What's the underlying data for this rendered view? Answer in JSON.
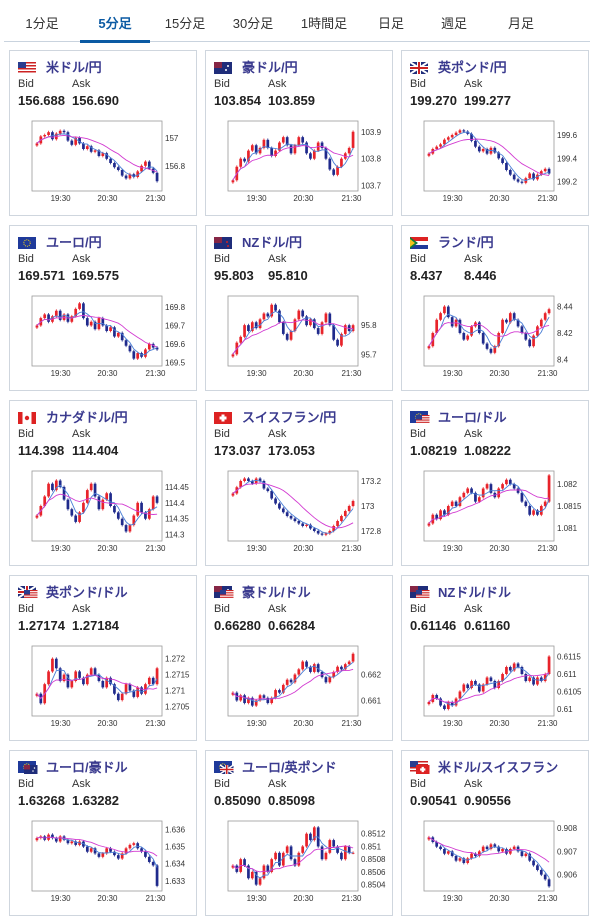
{
  "tabs": [
    {
      "label": "1分足",
      "active": false
    },
    {
      "label": "5分足",
      "active": true
    },
    {
      "label": "15分足",
      "active": false
    },
    {
      "label": "30分足",
      "active": false
    },
    {
      "label": "1時間足",
      "active": false
    },
    {
      "label": "日足",
      "active": false
    },
    {
      "label": "週足",
      "active": false
    },
    {
      "label": "月足",
      "active": false
    }
  ],
  "labels": {
    "bid": "Bid",
    "ask": "Ask"
  },
  "colors": {
    "up": "#e8232a",
    "down": "#1f2a8c",
    "ma_short": "#4a7fd6",
    "ma_long": "#d23bd1",
    "frame": "#999999"
  },
  "pairs": [
    {
      "name": "米ドル/円",
      "flag": "us",
      "bid": "156.688",
      "ask": "156.690"
    },
    {
      "name": "豪ドル/円",
      "flag": "au",
      "bid": "103.854",
      "ask": "103.859"
    },
    {
      "name": "英ポンド/円",
      "flag": "gb",
      "bid": "199.270",
      "ask": "199.277"
    },
    {
      "name": "ユーロ/円",
      "flag": "eu",
      "bid": "169.571",
      "ask": "169.575"
    },
    {
      "name": "NZドル/円",
      "flag": "nz",
      "bid": "95.803",
      "ask": "95.810"
    },
    {
      "name": "ランド/円",
      "flag": "za",
      "bid": "8.437",
      "ask": "8.446"
    },
    {
      "name": "カナダドル/円",
      "flag": "ca",
      "bid": "114.398",
      "ask": "114.404"
    },
    {
      "name": "スイスフラン/円",
      "flag": "ch",
      "bid": "173.037",
      "ask": "173.053"
    },
    {
      "name": "ユーロ/ドル",
      "flag": "euus",
      "bid": "1.08219",
      "ask": "1.08222"
    },
    {
      "name": "英ポンド/ドル",
      "flag": "gbus",
      "bid": "1.27174",
      "ask": "1.27184"
    },
    {
      "name": "豪ドル/ドル",
      "flag": "auus",
      "bid": "0.66280",
      "ask": "0.66284"
    },
    {
      "name": "NZドル/ドル",
      "flag": "nzus",
      "bid": "0.61146",
      "ask": "0.61160"
    },
    {
      "name": "ユーロ/豪ドル",
      "flag": "euau",
      "bid": "1.63268",
      "ask": "1.63282"
    },
    {
      "name": "ユーロ/英ポンド",
      "flag": "eugb",
      "bid": "0.85090",
      "ask": "0.85098"
    },
    {
      "name": "米ドル/スイスフラン",
      "flag": "usch",
      "bid": "0.90541",
      "ask": "0.90556"
    }
  ],
  "chart_data": [
    {
      "type": "candlestick",
      "pair": "米ドル/円",
      "x_ticks": [
        "19:30",
        "20:30",
        "21:30"
      ],
      "y_ticks": [
        "157",
        "156.8"
      ],
      "ylim": [
        156.62,
        157.12
      ],
      "close": [
        156.96,
        157.01,
        157.02,
        157.04,
        156.99,
        157.03,
        157.05,
        157.04,
        156.98,
        156.95,
        157.0,
        156.96,
        156.92,
        156.94,
        156.9,
        156.91,
        156.87,
        156.89,
        156.85,
        156.82,
        156.79,
        156.77,
        156.73,
        156.71,
        156.74,
        156.72,
        156.76,
        156.8,
        156.83,
        156.78,
        156.75,
        156.69
      ]
    },
    {
      "type": "candlestick",
      "pair": "豪ドル/円",
      "x_ticks": [
        "19:30",
        "20:30",
        "21:30"
      ],
      "y_ticks": [
        "103.9",
        "103.8",
        "103.7"
      ],
      "ylim": [
        103.68,
        103.94
      ],
      "close": [
        103.72,
        103.77,
        103.8,
        103.79,
        103.83,
        103.85,
        103.82,
        103.84,
        103.87,
        103.84,
        103.81,
        103.83,
        103.86,
        103.88,
        103.85,
        103.82,
        103.85,
        103.88,
        103.86,
        103.82,
        103.8,
        103.83,
        103.86,
        103.84,
        103.8,
        103.76,
        103.74,
        103.77,
        103.8,
        103.82,
        103.84,
        103.9
      ]
    },
    {
      "type": "candlestick",
      "pair": "英ポンド/円",
      "x_ticks": [
        "19:30",
        "20:30",
        "21:30"
      ],
      "y_ticks": [
        "199.6",
        "199.4",
        "199.2"
      ],
      "ylim": [
        199.12,
        199.72
      ],
      "close": [
        199.44,
        199.48,
        199.5,
        199.52,
        199.56,
        199.58,
        199.6,
        199.62,
        199.64,
        199.63,
        199.61,
        199.55,
        199.5,
        199.46,
        199.48,
        199.44,
        199.49,
        199.45,
        199.4,
        199.36,
        199.3,
        199.26,
        199.22,
        199.2,
        199.19,
        199.23,
        199.27,
        199.22,
        199.26,
        199.29,
        199.31,
        199.27
      ]
    },
    {
      "type": "candlestick",
      "pair": "ユーロ/円",
      "x_ticks": [
        "19:30",
        "20:30",
        "21:30"
      ],
      "y_ticks": [
        "169.8",
        "169.7",
        "169.6",
        "169.5"
      ],
      "ylim": [
        169.48,
        169.86
      ],
      "close": [
        169.7,
        169.74,
        169.76,
        169.72,
        169.75,
        169.78,
        169.73,
        169.76,
        169.72,
        169.75,
        169.79,
        169.82,
        169.74,
        169.7,
        169.72,
        169.68,
        169.74,
        169.7,
        169.67,
        169.69,
        169.64,
        169.66,
        169.62,
        169.59,
        169.56,
        169.52,
        169.55,
        169.53,
        169.57,
        169.6,
        169.58,
        169.57
      ]
    },
    {
      "type": "candlestick",
      "pair": "NZドル/円",
      "x_ticks": [
        "19:30",
        "20:30",
        "21:30"
      ],
      "y_ticks": [
        "95.8",
        "95.7"
      ],
      "ylim": [
        95.66,
        95.9
      ],
      "close": [
        95.7,
        95.74,
        95.76,
        95.8,
        95.78,
        95.81,
        95.79,
        95.82,
        95.84,
        95.83,
        95.87,
        95.85,
        95.81,
        95.77,
        95.75,
        95.78,
        95.82,
        95.85,
        95.83,
        95.8,
        95.82,
        95.79,
        95.77,
        95.81,
        95.84,
        95.8,
        95.75,
        95.73,
        95.77,
        95.8,
        95.78,
        95.8
      ]
    },
    {
      "type": "candlestick",
      "pair": "ランド/円",
      "x_ticks": [
        "19:30",
        "20:30",
        "21:30"
      ],
      "y_ticks": [
        "8.44",
        "8.42",
        "8.4"
      ],
      "ylim": [
        8.395,
        8.448
      ],
      "close": [
        8.41,
        8.42,
        8.43,
        8.435,
        8.44,
        8.432,
        8.425,
        8.43,
        8.42,
        8.415,
        8.418,
        8.425,
        8.428,
        8.42,
        8.412,
        8.408,
        8.405,
        8.41,
        8.42,
        8.43,
        8.428,
        8.435,
        8.43,
        8.425,
        8.42,
        8.415,
        8.41,
        8.418,
        8.425,
        8.43,
        8.435,
        8.438
      ]
    },
    {
      "type": "candlestick",
      "pair": "カナダドル/円",
      "x_ticks": [
        "19:30",
        "20:30",
        "21:30"
      ],
      "y_ticks": [
        "114.45",
        "114.4",
        "114.35",
        "114.3"
      ],
      "ylim": [
        114.28,
        114.5
      ],
      "close": [
        114.36,
        114.39,
        114.42,
        114.46,
        114.44,
        114.47,
        114.45,
        114.41,
        114.38,
        114.36,
        114.34,
        114.37,
        114.4,
        114.44,
        114.46,
        114.42,
        114.38,
        114.41,
        114.43,
        114.39,
        114.37,
        114.35,
        114.33,
        114.31,
        114.33,
        114.36,
        114.4,
        114.37,
        114.35,
        114.38,
        114.42,
        114.4
      ]
    },
    {
      "type": "candlestick",
      "pair": "スイスフラン/円",
      "x_ticks": [
        "19:30",
        "20:30",
        "21:30"
      ],
      "y_ticks": [
        "173.2",
        "173",
        "172.8"
      ],
      "ylim": [
        172.72,
        173.28
      ],
      "close": [
        173.1,
        173.15,
        173.2,
        173.22,
        173.2,
        173.18,
        173.22,
        173.2,
        173.14,
        173.12,
        173.06,
        173.02,
        172.98,
        172.95,
        172.92,
        172.9,
        172.88,
        172.86,
        172.84,
        172.85,
        172.82,
        172.8,
        172.78,
        172.77,
        172.78,
        172.8,
        172.84,
        172.88,
        172.92,
        172.96,
        173.0,
        173.04
      ]
    },
    {
      "type": "candlestick",
      "pair": "ユーロ/ドル",
      "x_ticks": [
        "19:30",
        "20:30",
        "21:30"
      ],
      "y_ticks": [
        "1.082",
        "1.0815",
        "1.081"
      ],
      "ylim": [
        1.0807,
        1.0823
      ],
      "close": [
        1.0811,
        1.0813,
        1.0812,
        1.0814,
        1.0813,
        1.0815,
        1.0816,
        1.0815,
        1.0817,
        1.0818,
        1.0819,
        1.0818,
        1.0816,
        1.0817,
        1.0819,
        1.082,
        1.0818,
        1.0817,
        1.0819,
        1.082,
        1.0821,
        1.082,
        1.0819,
        1.0818,
        1.0816,
        1.0815,
        1.0813,
        1.0814,
        1.0813,
        1.0815,
        1.0816,
        1.0822
      ]
    },
    {
      "type": "candlestick",
      "pair": "英ポンド/ドル",
      "x_ticks": [
        "19:30",
        "20:30",
        "21:30"
      ],
      "y_ticks": [
        "1.272",
        "1.2715",
        "1.271",
        "1.2705"
      ],
      "ylim": [
        1.2702,
        1.2724
      ],
      "close": [
        1.2709,
        1.2706,
        1.2712,
        1.2716,
        1.272,
        1.2717,
        1.2713,
        1.2715,
        1.2711,
        1.2713,
        1.2716,
        1.2714,
        1.2712,
        1.2715,
        1.2717,
        1.2715,
        1.2713,
        1.2711,
        1.2714,
        1.2712,
        1.2709,
        1.2707,
        1.2709,
        1.2712,
        1.271,
        1.2708,
        1.2711,
        1.2709,
        1.2712,
        1.2714,
        1.2712,
        1.2717
      ]
    },
    {
      "type": "candlestick",
      "pair": "豪ドル/ドル",
      "x_ticks": [
        "19:30",
        "20:30",
        "21:30"
      ],
      "y_ticks": [
        "0.662",
        "0.661"
      ],
      "ylim": [
        0.6604,
        0.6631
      ],
      "close": [
        0.6613,
        0.661,
        0.6612,
        0.6609,
        0.6611,
        0.6608,
        0.661,
        0.6612,
        0.6611,
        0.6609,
        0.6611,
        0.6614,
        0.6613,
        0.6616,
        0.6618,
        0.6617,
        0.662,
        0.6622,
        0.6625,
        0.6623,
        0.6621,
        0.6624,
        0.6621,
        0.6619,
        0.6617,
        0.6619,
        0.6621,
        0.6623,
        0.6622,
        0.6624,
        0.6625,
        0.6628
      ]
    },
    {
      "type": "candlestick",
      "pair": "NZドル/ドル",
      "x_ticks": [
        "19:30",
        "20:30",
        "21:30"
      ],
      "y_ticks": [
        "0.6115",
        "0.611",
        "0.6105",
        "0.61"
      ],
      "ylim": [
        0.6098,
        0.6118
      ],
      "close": [
        0.6102,
        0.6104,
        0.6103,
        0.6101,
        0.61,
        0.6102,
        0.6101,
        0.6103,
        0.6105,
        0.6107,
        0.6106,
        0.6108,
        0.6107,
        0.6105,
        0.6107,
        0.6109,
        0.6108,
        0.6106,
        0.6108,
        0.611,
        0.6112,
        0.6111,
        0.6113,
        0.6112,
        0.611,
        0.6108,
        0.6109,
        0.6107,
        0.6109,
        0.6108,
        0.611,
        0.6115
      ]
    },
    {
      "type": "candlestick",
      "pair": "ユーロ/豪ドル",
      "x_ticks": [
        "19:30",
        "20:30",
        "21:30"
      ],
      "y_ticks": [
        "1.636",
        "1.635",
        "1.634",
        "1.633"
      ],
      "ylim": [
        1.6324,
        1.6365
      ],
      "close": [
        1.6355,
        1.6356,
        1.6354,
        1.6357,
        1.6355,
        1.6353,
        1.6356,
        1.6354,
        1.6352,
        1.6353,
        1.6351,
        1.6353,
        1.635,
        1.6347,
        1.6349,
        1.6346,
        1.6344,
        1.6346,
        1.6349,
        1.6347,
        1.6345,
        1.6343,
        1.6346,
        1.6349,
        1.6351,
        1.6352,
        1.6349,
        1.6347,
        1.6344,
        1.6341,
        1.6339,
        1.6327
      ]
    },
    {
      "type": "candlestick",
      "pair": "ユーロ/英ポンド",
      "x_ticks": [
        "19:30",
        "20:30",
        "21:30"
      ],
      "y_ticks": [
        "0.8512",
        "0.851",
        "0.8508",
        "0.8506",
        "0.8504"
      ],
      "ylim": [
        0.8503,
        0.8514
      ],
      "close": [
        0.8507,
        0.8506,
        0.8508,
        0.8507,
        0.8505,
        0.8506,
        0.8504,
        0.8505,
        0.8507,
        0.8506,
        0.8508,
        0.8509,
        0.8507,
        0.8509,
        0.851,
        0.8508,
        0.8507,
        0.8509,
        0.851,
        0.8512,
        0.8511,
        0.8513,
        0.851,
        0.8508,
        0.8509,
        0.8511,
        0.851,
        0.8509,
        0.8508,
        0.851,
        0.8509,
        0.8509
      ]
    },
    {
      "type": "candlestick",
      "pair": "米ドル/スイスフラン",
      "x_ticks": [
        "19:30",
        "20:30",
        "21:30"
      ],
      "y_ticks": [
        "0.908",
        "0.907",
        "0.906"
      ],
      "ylim": [
        0.9053,
        0.9083
      ],
      "close": [
        0.9076,
        0.9074,
        0.9072,
        0.9071,
        0.9069,
        0.907,
        0.9068,
        0.9066,
        0.9067,
        0.9065,
        0.9067,
        0.9069,
        0.9068,
        0.907,
        0.9072,
        0.9071,
        0.9073,
        0.9072,
        0.907,
        0.9071,
        0.9069,
        0.9071,
        0.9072,
        0.907,
        0.9068,
        0.9069,
        0.9066,
        0.9064,
        0.9062,
        0.906,
        0.9058,
        0.9055
      ]
    }
  ]
}
